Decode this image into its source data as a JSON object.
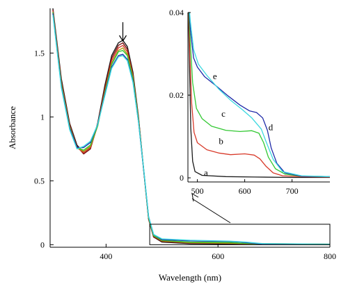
{
  "colors": {
    "black": "#1a1a1a",
    "darkred": "#7a1010",
    "red": "#d83a2a",
    "green": "#32c832",
    "olive": "#a89a10",
    "blue": "#1e2aa8",
    "cyan": "#3ad8e0"
  },
  "chart_data": [
    {
      "id": "main",
      "type": "line",
      "title": "",
      "xlabel": "Wavelength (nm)",
      "ylabel": "Absorbance",
      "xlim": [
        300,
        800
      ],
      "ylim": [
        -0.02,
        1.85
      ],
      "xticks": [
        400,
        600,
        800
      ],
      "yticks": [
        0,
        0.5,
        1,
        1.5
      ],
      "xtick_labels": [
        "400",
        "600",
        "800"
      ],
      "ytick_labels": [
        "0",
        "0.5",
        "1",
        "1.5"
      ],
      "grid": false,
      "series": [
        {
          "key": "black",
          "color": "black",
          "values": [
            [
              305,
              1.85
            ],
            [
              320,
              1.3
            ],
            [
              335,
              0.95
            ],
            [
              348,
              0.78
            ],
            [
              360,
              0.72
            ],
            [
              372,
              0.76
            ],
            [
              385,
              0.95
            ],
            [
              398,
              1.25
            ],
            [
              410,
              1.48
            ],
            [
              422,
              1.58
            ],
            [
              430,
              1.6
            ],
            [
              438,
              1.55
            ],
            [
              448,
              1.35
            ],
            [
              458,
              1.0
            ],
            [
              468,
              0.55
            ],
            [
              476,
              0.2
            ],
            [
              485,
              0.06
            ],
            [
              500,
              0.02
            ],
            [
              550,
              0.008
            ],
            [
              650,
              0.003
            ],
            [
              800,
              0.001
            ]
          ]
        },
        {
          "key": "darkred",
          "color": "darkred",
          "values": [
            [
              305,
              1.84
            ],
            [
              320,
              1.28
            ],
            [
              335,
              0.94
            ],
            [
              348,
              0.77
            ],
            [
              360,
              0.71
            ],
            [
              372,
              0.75
            ],
            [
              385,
              0.94
            ],
            [
              398,
              1.23
            ],
            [
              410,
              1.46
            ],
            [
              422,
              1.56
            ],
            [
              430,
              1.58
            ],
            [
              438,
              1.53
            ],
            [
              448,
              1.33
            ],
            [
              458,
              0.99
            ],
            [
              468,
              0.55
            ],
            [
              476,
              0.2
            ],
            [
              485,
              0.06
            ],
            [
              500,
              0.025
            ],
            [
              550,
              0.012
            ],
            [
              650,
              0.008
            ],
            [
              800,
              0.004
            ]
          ]
        },
        {
          "key": "red",
          "color": "red",
          "values": [
            [
              305,
              1.83
            ],
            [
              320,
              1.27
            ],
            [
              335,
              0.93
            ],
            [
              348,
              0.76
            ],
            [
              360,
              0.72
            ],
            [
              372,
              0.76
            ],
            [
              385,
              0.93
            ],
            [
              398,
              1.21
            ],
            [
              410,
              1.44
            ],
            [
              422,
              1.54
            ],
            [
              430,
              1.56
            ],
            [
              438,
              1.51
            ],
            [
              448,
              1.32
            ],
            [
              458,
              0.98
            ],
            [
              468,
              0.55
            ],
            [
              476,
              0.21
            ],
            [
              485,
              0.07
            ],
            [
              500,
              0.03
            ],
            [
              550,
              0.015
            ],
            [
              620,
              0.012
            ],
            [
              640,
              0.008
            ],
            [
              680,
              0.003
            ],
            [
              800,
              0.002
            ]
          ]
        },
        {
          "key": "olive",
          "color": "olive",
          "values": [
            [
              305,
              1.82
            ],
            [
              320,
              1.26
            ],
            [
              335,
              0.92
            ],
            [
              348,
              0.76
            ],
            [
              360,
              0.73
            ],
            [
              372,
              0.77
            ],
            [
              385,
              0.93
            ],
            [
              398,
              1.2
            ],
            [
              410,
              1.42
            ],
            [
              422,
              1.52
            ],
            [
              430,
              1.54
            ],
            [
              438,
              1.49
            ],
            [
              448,
              1.31
            ],
            [
              458,
              0.98
            ],
            [
              468,
              0.55
            ],
            [
              476,
              0.21
            ],
            [
              485,
              0.07
            ],
            [
              500,
              0.03
            ],
            [
              550,
              0.016
            ],
            [
              650,
              0.01
            ],
            [
              800,
              0.004
            ]
          ]
        },
        {
          "key": "green",
          "color": "green",
          "values": [
            [
              305,
              1.82
            ],
            [
              320,
              1.25
            ],
            [
              335,
              0.92
            ],
            [
              348,
              0.76
            ],
            [
              360,
              0.74
            ],
            [
              372,
              0.78
            ],
            [
              385,
              0.93
            ],
            [
              398,
              1.19
            ],
            [
              410,
              1.41
            ],
            [
              422,
              1.51
            ],
            [
              430,
              1.52
            ],
            [
              438,
              1.48
            ],
            [
              448,
              1.3
            ],
            [
              458,
              0.97
            ],
            [
              468,
              0.55
            ],
            [
              476,
              0.21
            ],
            [
              485,
              0.07
            ],
            [
              500,
              0.035
            ],
            [
              550,
              0.02
            ],
            [
              620,
              0.018
            ],
            [
              640,
              0.012
            ],
            [
              680,
              0.004
            ],
            [
              800,
              0.002
            ]
          ]
        },
        {
          "key": "blue",
          "color": "blue",
          "values": [
            [
              305,
              1.81
            ],
            [
              320,
              1.24
            ],
            [
              335,
              0.91
            ],
            [
              348,
              0.76
            ],
            [
              360,
              0.76
            ],
            [
              372,
              0.8
            ],
            [
              385,
              0.94
            ],
            [
              398,
              1.18
            ],
            [
              410,
              1.39
            ],
            [
              422,
              1.48
            ],
            [
              430,
              1.49
            ],
            [
              438,
              1.45
            ],
            [
              448,
              1.28
            ],
            [
              458,
              0.96
            ],
            [
              468,
              0.55
            ],
            [
              476,
              0.22
            ],
            [
              485,
              0.08
            ],
            [
              500,
              0.04
            ],
            [
              550,
              0.03
            ],
            [
              620,
              0.025
            ],
            [
              640,
              0.02
            ],
            [
              680,
              0.005
            ],
            [
              800,
              0.003
            ]
          ]
        },
        {
          "key": "cyan",
          "color": "cyan",
          "values": [
            [
              305,
              1.8
            ],
            [
              320,
              1.23
            ],
            [
              335,
              0.9
            ],
            [
              348,
              0.75
            ],
            [
              360,
              0.77
            ],
            [
              372,
              0.81
            ],
            [
              385,
              0.94
            ],
            [
              398,
              1.17
            ],
            [
              410,
              1.38
            ],
            [
              422,
              1.47
            ],
            [
              430,
              1.48
            ],
            [
              438,
              1.44
            ],
            [
              448,
              1.27
            ],
            [
              458,
              0.96
            ],
            [
              468,
              0.56
            ],
            [
              476,
              0.22
            ],
            [
              485,
              0.08
            ],
            [
              500,
              0.045
            ],
            [
              550,
              0.035
            ],
            [
              620,
              0.028
            ],
            [
              650,
              0.02
            ],
            [
              680,
              0.008
            ],
            [
              800,
              0.004
            ]
          ]
        }
      ],
      "annotations": {
        "arrow_at_x": 430,
        "zoom_box": {
          "x": [
            478,
            800
          ],
          "y": [
            0,
            0.16
          ]
        }
      }
    },
    {
      "id": "inset",
      "type": "line",
      "title": "",
      "xlabel": "",
      "ylabel": "",
      "xlim": [
        480,
        780
      ],
      "ylim": [
        -0.001,
        0.04
      ],
      "xticks": [
        500,
        600,
        700
      ],
      "yticks": [
        0,
        0.02,
        0.04
      ],
      "xtick_labels": [
        "500",
        "600",
        "700"
      ],
      "ytick_labels": [
        "0",
        "0.02",
        "0.04"
      ],
      "grid": false,
      "series": [
        {
          "name": "a",
          "color": "black",
          "label_at": [
            518,
            0.0012
          ],
          "values": [
            [
              480,
              0.045
            ],
            [
              483,
              0.03
            ],
            [
              486,
              0.012
            ],
            [
              490,
              0.004
            ],
            [
              495,
              0.0015
            ],
            [
              510,
              0.0006
            ],
            [
              560,
              0.0003
            ],
            [
              620,
              0.0002
            ],
            [
              700,
              0.0001
            ],
            [
              780,
              0.0001
            ]
          ]
        },
        {
          "name": "b",
          "color": "red",
          "label_at": [
            550,
            0.0088
          ],
          "values": [
            [
              480,
              0.045
            ],
            [
              484,
              0.03
            ],
            [
              488,
              0.018
            ],
            [
              493,
              0.011
            ],
            [
              500,
              0.0085
            ],
            [
              520,
              0.0068
            ],
            [
              545,
              0.006
            ],
            [
              570,
              0.0056
            ],
            [
              600,
              0.0058
            ],
            [
              620,
              0.0055
            ],
            [
              632,
              0.0046
            ],
            [
              645,
              0.0028
            ],
            [
              660,
              0.0012
            ],
            [
              680,
              0.0005
            ],
            [
              720,
              0.0003
            ],
            [
              780,
              0.0002
            ]
          ]
        },
        {
          "name": "c",
          "color": "green",
          "label_at": [
            555,
            0.0155
          ],
          "values": [
            [
              480,
              0.045
            ],
            [
              484,
              0.035
            ],
            [
              490,
              0.023
            ],
            [
              498,
              0.0168
            ],
            [
              510,
              0.0143
            ],
            [
              530,
              0.0125
            ],
            [
              560,
              0.0115
            ],
            [
              590,
              0.0112
            ],
            [
              615,
              0.0114
            ],
            [
              630,
              0.0108
            ],
            [
              640,
              0.0085
            ],
            [
              650,
              0.005
            ],
            [
              665,
              0.0022
            ],
            [
              685,
              0.0009
            ],
            [
              720,
              0.0004
            ],
            [
              780,
              0.0003
            ]
          ]
        },
        {
          "name": "d",
          "color": "blue",
          "label_at": [
            655,
            0.0122
          ],
          "values": [
            [
              480,
              0.045
            ],
            [
              485,
              0.036
            ],
            [
              492,
              0.029
            ],
            [
              500,
              0.0268
            ],
            [
              515,
              0.0245
            ],
            [
              540,
              0.0222
            ],
            [
              565,
              0.0198
            ],
            [
              590,
              0.0176
            ],
            [
              610,
              0.0162
            ],
            [
              625,
              0.0158
            ],
            [
              638,
              0.0145
            ],
            [
              648,
              0.0115
            ],
            [
              656,
              0.0072
            ],
            [
              668,
              0.0035
            ],
            [
              685,
              0.0012
            ],
            [
              720,
              0.0004
            ],
            [
              780,
              0.0003
            ]
          ]
        },
        {
          "name": "e",
          "color": "cyan",
          "label_at": [
            537,
            0.0245
          ],
          "values": [
            [
              480,
              0.045
            ],
            [
              485,
              0.038
            ],
            [
              492,
              0.031
            ],
            [
              502,
              0.0275
            ],
            [
              520,
              0.0248
            ],
            [
              545,
              0.0215
            ],
            [
              570,
              0.0188
            ],
            [
              595,
              0.0165
            ],
            [
              615,
              0.0145
            ],
            [
              635,
              0.0118
            ],
            [
              645,
              0.0088
            ],
            [
              660,
              0.0045
            ],
            [
              680,
              0.0015
            ],
            [
              720,
              0.0005
            ],
            [
              780,
              0.0003
            ]
          ]
        }
      ]
    }
  ]
}
